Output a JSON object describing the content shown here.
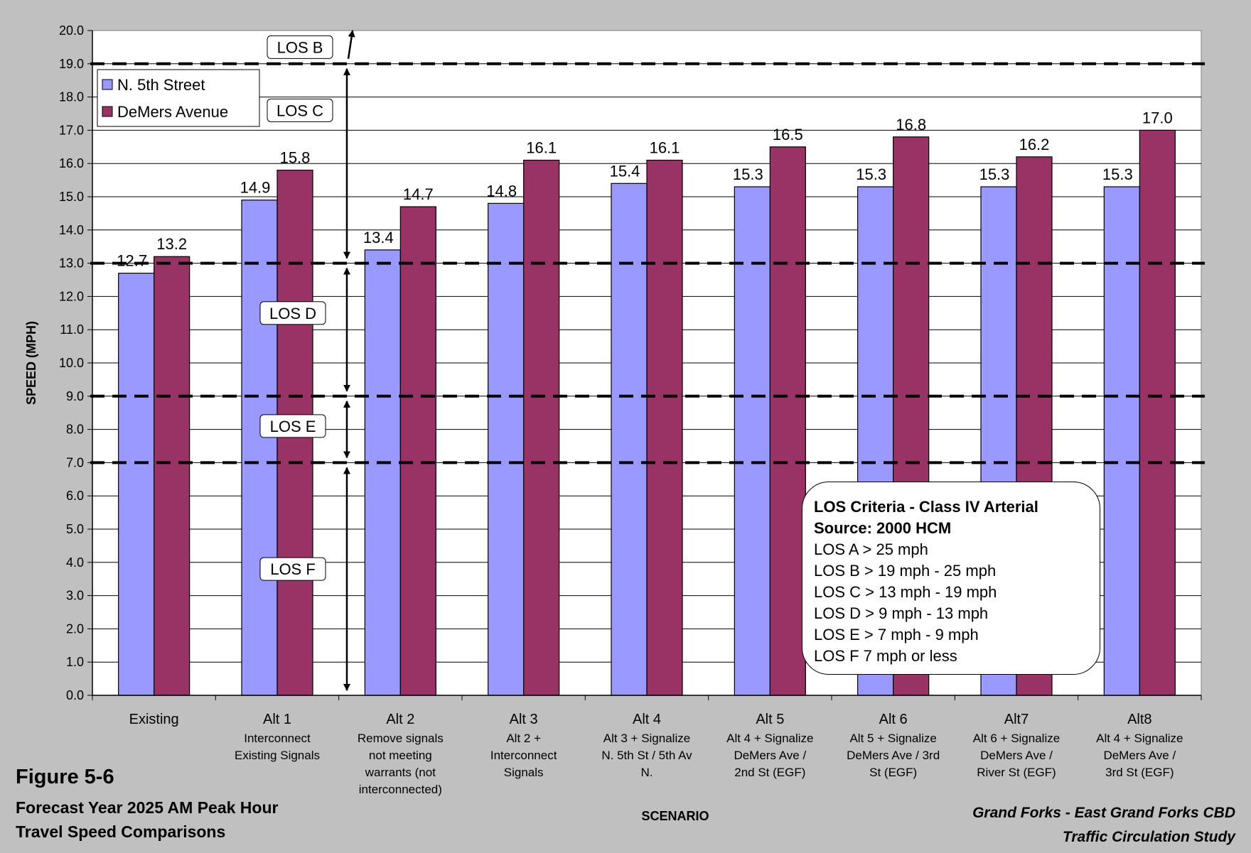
{
  "figure": {
    "number": "Figure 5-6",
    "title_lines": [
      "Forecast Year 2025 AM Peak Hour",
      "Travel Speed Comparisons"
    ],
    "study_lines": [
      "Grand Forks - East Grand Forks CBD",
      "Traffic Circulation Study"
    ]
  },
  "los_criteria": {
    "title": "LOS Criteria - Class IV Arterial",
    "source": "Source: 2000 HCM",
    "rows": [
      "LOS A  > 25 mph",
      "LOS B  > 19 mph - 25 mph",
      "LOS C  > 13 mph - 19 mph",
      "LOS D  > 9 mph - 13 mph",
      "LOS E  > 7 mph - 9 mph",
      "LOS F  7 mph or less"
    ]
  },
  "chart_data": {
    "type": "bar",
    "xlabel": "SCENARIO",
    "ylabel": "SPEED (MPH)",
    "ylim": [
      0,
      20
    ],
    "ytick_step": 1,
    "grid": "horizontal",
    "legend_position": "top-left",
    "categories": [
      {
        "name": "Existing",
        "desc": []
      },
      {
        "name": "Alt 1",
        "desc": [
          "Interconnect",
          "Existing Signals"
        ]
      },
      {
        "name": "Alt 2",
        "desc": [
          "Remove signals",
          "not meeting",
          "warrants (not",
          "interconnected)"
        ]
      },
      {
        "name": "Alt 3",
        "desc": [
          "Alt 2 +",
          "Interconnect",
          "Signals"
        ]
      },
      {
        "name": "Alt 4",
        "desc": [
          "Alt 3 + Signalize",
          "N. 5th St / 5th Av",
          "N."
        ]
      },
      {
        "name": "Alt 5",
        "desc": [
          "Alt 4 + Signalize",
          "DeMers Ave /",
          "2nd St (EGF)"
        ]
      },
      {
        "name": "Alt 6",
        "desc": [
          "Alt 5 + Signalize",
          "DeMers Ave / 3rd",
          "St (EGF)"
        ]
      },
      {
        "name": "Alt7",
        "desc": [
          "Alt 6 + Signalize",
          "DeMers Ave /",
          "River St (EGF)"
        ]
      },
      {
        "name": "Alt8",
        "desc": [
          "Alt 4 + Signalize",
          "DeMers Ave /",
          "3rd St (EGF)"
        ]
      }
    ],
    "series": [
      {
        "name": "N. 5th Street",
        "color": "#9999ff",
        "values": [
          12.7,
          14.9,
          13.4,
          14.8,
          15.4,
          15.3,
          15.3,
          15.3,
          15.3
        ]
      },
      {
        "name": "DeMers Avenue",
        "color": "#993366",
        "values": [
          13.2,
          15.8,
          14.7,
          16.1,
          16.1,
          16.5,
          16.8,
          16.2,
          17.0
        ]
      }
    ],
    "los_thresholds": [
      19,
      13,
      9,
      7
    ],
    "los_labels": [
      {
        "label": "LOS B",
        "y": 19.5
      },
      {
        "label": "LOS C",
        "y": 17.6
      },
      {
        "label": "LOS D",
        "y": 11.5
      },
      {
        "label": "LOS E",
        "y": 8.1
      },
      {
        "label": "LOS F",
        "y": 3.8
      }
    ]
  }
}
